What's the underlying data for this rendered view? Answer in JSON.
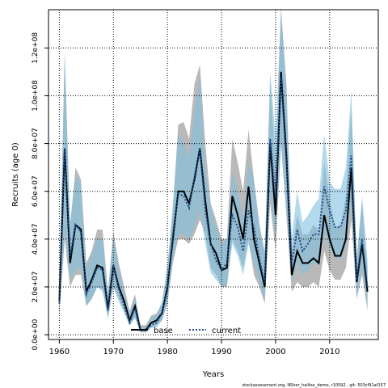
{
  "chart_data": {
    "type": "line",
    "xlabel": "Years",
    "ylabel": "Recruits (age 0)",
    "xlim": [
      1958,
      2019
    ],
    "ylim": [
      -2000000.0,
      136000000.0
    ],
    "x_ticks": [
      1960,
      1970,
      1980,
      1990,
      2000,
      2010
    ],
    "x_tick_labels": [
      "1960",
      "1970",
      "1980",
      "1990",
      "2000",
      "2010"
    ],
    "y_ticks": [
      0,
      20000000,
      40000000,
      60000000,
      80000000,
      100000000,
      120000000
    ],
    "y_tick_labels": [
      "0.0e+00",
      "2.0e+07",
      "4.0e+07",
      "6.0e+07",
      "8.0e+07",
      "1.0e+08",
      "1.2e+08"
    ],
    "grid": true,
    "legend_placement": "bottom-center",
    "footer": "stockassessment.org, NSher_halifax_demo, r10592 , git: 503cf91af157",
    "x": [
      1960,
      1961,
      1962,
      1963,
      1964,
      1965,
      1966,
      1967,
      1968,
      1969,
      1970,
      1971,
      1972,
      1973,
      1974,
      1975,
      1976,
      1977,
      1978,
      1979,
      1980,
      1981,
      1982,
      1983,
      1984,
      1985,
      1986,
      1987,
      1988,
      1989,
      1990,
      1991,
      1992,
      1993,
      1994,
      1995,
      1996,
      1997,
      1998,
      1999,
      2000,
      2001,
      2002,
      2003,
      2004,
      2005,
      2006,
      2007,
      2008,
      2009,
      2010,
      2011,
      2012,
      2013,
      2014,
      2015,
      2016,
      2017
    ],
    "series": [
      {
        "name": "base",
        "color": "#000000",
        "band_color": "#808080",
        "values": [
          14,
          78,
          30,
          46,
          44,
          18,
          23,
          29,
          28,
          11,
          29,
          20,
          14,
          6,
          12,
          2,
          2,
          5,
          6,
          9,
          20,
          40,
          60,
          60,
          55,
          65,
          78,
          56,
          38,
          34,
          27,
          28,
          58,
          50,
          40,
          62,
          40,
          30,
          20,
          80,
          50,
          110,
          75,
          25,
          35,
          30,
          30,
          32,
          30,
          50,
          40,
          33,
          33,
          40,
          70,
          22,
          38,
          18
        ],
        "lower": [
          8,
          40,
          20,
          25,
          25,
          12,
          15,
          20,
          19,
          7,
          20,
          15,
          10,
          4,
          7,
          1,
          1,
          3,
          4,
          6,
          13,
          30,
          40,
          40,
          38,
          42,
          48,
          42,
          28,
          25,
          20,
          20,
          40,
          35,
          28,
          40,
          25,
          20,
          13,
          55,
          35,
          80,
          50,
          18,
          22,
          20,
          20,
          22,
          20,
          35,
          27,
          23,
          23,
          28,
          48,
          15,
          25,
          10
        ],
        "upper": [
          20,
          118,
          45,
          70,
          65,
          30,
          35,
          44,
          44,
          18,
          43,
          30,
          20,
          10,
          17,
          4,
          4,
          8,
          9,
          13,
          29,
          52,
          88,
          89,
          82,
          105,
          113,
          80,
          55,
          48,
          40,
          40,
          82,
          72,
          60,
          86,
          65,
          45,
          35,
          106,
          70,
          137,
          105,
          35,
          50,
          42,
          42,
          46,
          44,
          72,
          57,
          45,
          45,
          58,
          95,
          32,
          55,
          28
        ]
      },
      {
        "name": "current",
        "color": "#1f4e8c",
        "band_color": "#7fbfdf",
        "values": [
          13,
          78,
          33,
          46,
          43,
          17,
          22,
          28,
          27,
          10,
          29,
          19,
          12,
          5,
          11,
          2,
          2,
          4,
          5,
          9,
          19,
          42,
          59,
          58,
          53,
          66,
          78,
          52,
          38,
          31,
          27,
          30,
          50,
          45,
          35,
          52,
          45,
          32,
          22,
          82,
          58,
          108,
          72,
          30,
          44,
          35,
          38,
          42,
          42,
          62,
          52,
          45,
          45,
          52,
          75,
          23,
          40,
          20
        ],
        "lower": [
          8,
          44,
          23,
          27,
          28,
          12,
          15,
          20,
          18,
          7,
          20,
          14,
          9,
          4,
          7,
          1,
          1,
          3,
          3,
          6,
          13,
          32,
          42,
          42,
          40,
          45,
          52,
          38,
          26,
          23,
          20,
          21,
          38,
          33,
          25,
          38,
          30,
          22,
          14,
          60,
          40,
          80,
          52,
          22,
          30,
          25,
          27,
          30,
          29,
          43,
          37,
          32,
          32,
          37,
          55,
          15,
          28,
          12
        ],
        "upper": [
          20,
          118,
          47,
          67,
          63,
          27,
          34,
          40,
          40,
          17,
          41,
          27,
          18,
          9,
          16,
          3,
          3,
          7,
          8,
          14,
          28,
          55,
          84,
          80,
          74,
          93,
          108,
          70,
          53,
          45,
          38,
          40,
          68,
          60,
          48,
          72,
          65,
          47,
          34,
          110,
          83,
          136,
          102,
          41,
          60,
          47,
          50,
          54,
          57,
          84,
          64,
          61,
          61,
          70,
          102,
          32,
          58,
          31
        ]
      }
    ]
  }
}
